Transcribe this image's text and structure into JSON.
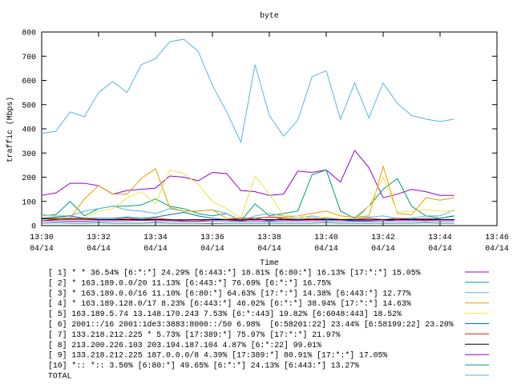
{
  "chart_data": {
    "type": "line",
    "title": "byte",
    "ylabel": "traffic (Mbps)",
    "xlabel": "Time",
    "xlim": [
      810,
      826
    ],
    "ylim": [
      0,
      800
    ],
    "yticks": [
      0,
      100,
      200,
      300,
      400,
      500,
      600,
      700,
      800
    ],
    "xticks": [
      {
        "value": 810,
        "label": "13:30\n04/14"
      },
      {
        "value": 812,
        "label": "13:32\n04/14"
      },
      {
        "value": 814,
        "label": "13:34\n04/14"
      },
      {
        "value": 816,
        "label": "13:36\n04/14"
      },
      {
        "value": 818,
        "label": "13:38\n04/14"
      },
      {
        "value": 820,
        "label": "13:40\n04/14"
      },
      {
        "value": 822,
        "label": "13:42\n04/14"
      },
      {
        "value": 824,
        "label": "13:44\n04/14"
      },
      {
        "value": 826,
        "label": "13:46\n04/14"
      }
    ],
    "x": [
      810,
      810.5,
      811,
      811.5,
      812,
      812.5,
      813,
      813.5,
      814,
      814.5,
      815,
      815.5,
      816,
      816.5,
      817,
      817.5,
      818,
      818.5,
      819,
      819.5,
      820,
      820.5,
      821,
      821.5,
      822,
      822.5,
      823,
      823.5,
      824,
      824.5
    ],
    "series": [
      {
        "name": "[ 1] * * 36.54% [6:*:*] 24.29% [6:443:*] 18.81% [6:80:*] 16.13% [17:*:*] 15.05%",
        "color": "#9400d3",
        "values": [
          125,
          135,
          175,
          175,
          165,
          130,
          145,
          150,
          155,
          205,
          200,
          185,
          220,
          215,
          145,
          140,
          125,
          130,
          225,
          220,
          230,
          180,
          310,
          240,
          115,
          130,
          150,
          140,
          125,
          125
        ]
      },
      {
        "name": "[ 2] * 163.189.0.0/20 11.13% [6:443:*] 76.69% [6:*:*] 16.75%",
        "color": "#009e73",
        "values": [
          40,
          45,
          100,
          40,
          70,
          80,
          80,
          85,
          110,
          80,
          70,
          50,
          40,
          50,
          20,
          90,
          40,
          50,
          60,
          210,
          230,
          60,
          30,
          80,
          150,
          195,
          80,
          40,
          30,
          40
        ]
      },
      {
        "name": "[ 3] * 163.189.0.0/16 11.10% [6:80:*] 64.63% [17:*:*] 14.38% [6:443:*] 12.77%",
        "color": "#56b4e9",
        "values": [
          45,
          40,
          40,
          60,
          70,
          80,
          65,
          60,
          50,
          70,
          60,
          60,
          65,
          50,
          20,
          40,
          50,
          40,
          30,
          40,
          30,
          25,
          30,
          35,
          40,
          30,
          30,
          40,
          40,
          65
        ]
      },
      {
        "name": "[ 4] * 163.189.128.0/17 8.23% [6:443:*] 46.02% [6:*:*] 38.94% [17:*:*] 14.63%",
        "color": "#e69f00",
        "values": [
          30,
          30,
          30,
          110,
          165,
          130,
          130,
          195,
          235,
          75,
          60,
          60,
          65,
          30,
          30,
          30,
          35,
          35,
          40,
          50,
          60,
          40,
          35,
          40,
          245,
          50,
          45,
          115,
          105,
          115
        ]
      },
      {
        "name": "[ 5] 163.189.5.74 13.148.170.243 7.53% [6:*:443] 19.82% [6:6048:443] 18.52%",
        "color": "#f0e442",
        "values": [
          40,
          40,
          30,
          30,
          60,
          70,
          115,
          140,
          90,
          230,
          215,
          170,
          100,
          70,
          30,
          205,
          130,
          40,
          40,
          30,
          35,
          30,
          20,
          80,
          200,
          55,
          60,
          65,
          60,
          60
        ]
      },
      {
        "name": "[ 6] 2001::/16 2001:1de3:3883:8000::/50 6.98%  [6:58201:22] 23.44% [6:58199:22] 23.20%",
        "color": "#0072b2",
        "values": [
          30,
          35,
          40,
          30,
          30,
          30,
          35,
          30,
          35,
          45,
          55,
          40,
          30,
          25,
          20,
          30,
          20,
          30,
          25,
          25,
          30,
          25,
          20,
          20,
          20,
          25,
          30,
          25,
          30,
          40
        ]
      },
      {
        "name": "[ 7] 133.218.212.225 * 5.73% [17:389:*] 75.97% [17:*:*] 21.97%",
        "color": "#e51e10",
        "values": [
          20,
          25,
          30,
          30,
          25,
          25,
          30,
          25,
          30,
          25,
          20,
          20,
          25,
          25,
          30,
          30,
          35,
          30,
          25,
          30,
          25,
          25,
          25,
          30,
          25,
          30,
          25,
          30,
          25,
          25
        ]
      },
      {
        "name": "[ 8] 213.200.226.103 203.194.187.104 4.87% [6:*:22] 99.01%",
        "color": "#000000",
        "values": [
          28,
          27,
          26,
          26,
          25,
          25,
          25,
          25,
          25,
          24,
          24,
          25,
          25,
          25,
          24,
          25,
          25,
          25,
          24,
          25,
          25,
          25,
          24,
          24,
          25,
          25,
          25,
          24,
          25,
          25
        ]
      },
      {
        "name": "[ 9] 133.218.212.225 187.0.0.0/8 4.39% [17:389:*] 80.91% [17:*:*] 17.05%",
        "color": "#9400d3",
        "values": [
          20,
          20,
          18,
          18,
          20,
          20,
          20,
          22,
          20,
          20,
          18,
          18,
          20,
          20,
          18,
          20,
          18,
          20,
          20,
          20,
          20,
          20,
          18,
          18,
          20,
          20,
          20,
          20,
          20,
          20
        ]
      },
      {
        "name": "[10] *:: *:: 3.50% [6:80:*] 49.65% [6:*:*] 24.13% [6:443:*] 13.27%",
        "color": "#009e73",
        "values": [
          10,
          12,
          10,
          10,
          12,
          10,
          10,
          10,
          12,
          10,
          10,
          10,
          8,
          10,
          10,
          10,
          10,
          10,
          10,
          10,
          12,
          10,
          10,
          10,
          10,
          10,
          10,
          12,
          10,
          10
        ]
      },
      {
        "name": "TOTAL",
        "color": "#56b4e9",
        "values": [
          380,
          390,
          470,
          450,
          550,
          595,
          550,
          665,
          690,
          760,
          770,
          720,
          580,
          470,
          345,
          665,
          455,
          370,
          435,
          615,
          640,
          440,
          590,
          445,
          590,
          505,
          455,
          440,
          430,
          440
        ]
      }
    ]
  }
}
